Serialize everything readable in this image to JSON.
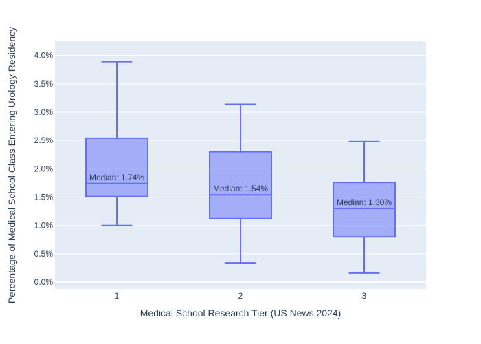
{
  "chart_data": {
    "type": "box",
    "title": "",
    "xlabel": "Medical School Research Tier (US News 2024)",
    "ylabel": "Percentage of Medical School Class Entering Urology Residency",
    "ylim": [
      -0.12,
      4.25
    ],
    "y_ticks": [
      "0.0%",
      "0.5%",
      "1.0%",
      "1.5%",
      "2.0%",
      "2.5%",
      "3.0%",
      "3.5%",
      "4.0%"
    ],
    "y_tick_values": [
      0,
      0.5,
      1.0,
      1.5,
      2.0,
      2.5,
      3.0,
      3.5,
      4.0
    ],
    "categories": [
      "1",
      "2",
      "3"
    ],
    "boxes": [
      {
        "category": "1",
        "min": 1.0,
        "q1": 1.51,
        "median": 1.74,
        "q3": 2.54,
        "max": 3.89,
        "median_label": "Median: 1.74%"
      },
      {
        "category": "2",
        "min": 0.34,
        "q1": 1.12,
        "median": 1.54,
        "q3": 2.3,
        "max": 3.14,
        "median_label": "Median: 1.54%"
      },
      {
        "category": "3",
        "min": 0.16,
        "q1": 0.8,
        "median": 1.3,
        "q3": 1.76,
        "max": 2.48,
        "median_label": "Median: 1.30%"
      }
    ],
    "grid": true,
    "legend": "none",
    "colors": {
      "plot_bg": "#e5ecf6",
      "grid": "#ffffff",
      "box_line": "#636efa",
      "box_fill": "rgba(99,110,250,0.5)",
      "text": "#2a3f5f"
    }
  }
}
